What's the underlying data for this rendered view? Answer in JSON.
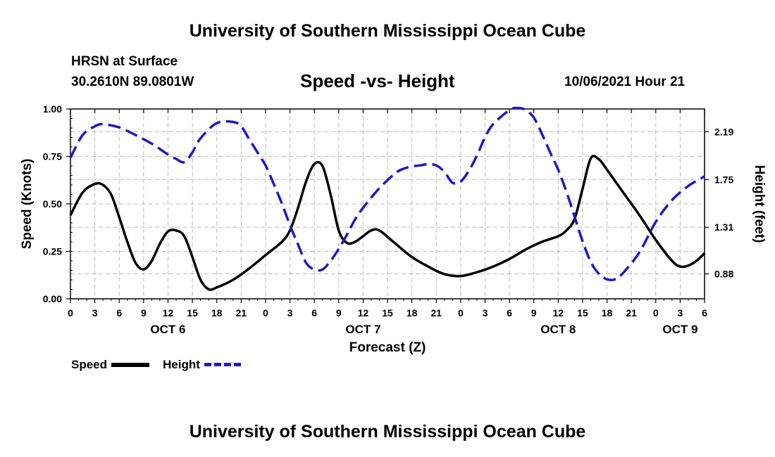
{
  "title_top": "University of Southern Mississippi Ocean Cube",
  "title_bottom": "University of Southern Mississippi Ocean Cube",
  "station": {
    "name": "HRSN at Surface",
    "location": "30.2610N  89.0801W"
  },
  "subtitle": "Speed -vs- Height",
  "datetime": "10/06/2021 Hour 21",
  "colors": {
    "speed": "#000000",
    "height": "#1a1acc",
    "grid": "#bbbbbb"
  },
  "legend": {
    "speed_label": "Speed",
    "height_label": "Height"
  },
  "chart_data": {
    "type": "line",
    "title": "Speed -vs- Height",
    "xlabel": "Forecast (Z)",
    "ylabel": "Speed (Knots)",
    "y2label": "Height (feet)",
    "x_unit": "hours since Oct 6 00Z",
    "xlim": [
      0,
      78
    ],
    "ylim": [
      0,
      1.0
    ],
    "y2lim": [
      0.65,
      2.4
    ],
    "grid": true,
    "x_ticks": [
      {
        "x": 0,
        "label": "0"
      },
      {
        "x": 3,
        "label": "3"
      },
      {
        "x": 6,
        "label": "6"
      },
      {
        "x": 9,
        "label": "9"
      },
      {
        "x": 12,
        "label": "12"
      },
      {
        "x": 15,
        "label": "15"
      },
      {
        "x": 18,
        "label": "18"
      },
      {
        "x": 21,
        "label": "21"
      },
      {
        "x": 24,
        "label": "0"
      },
      {
        "x": 27,
        "label": "3"
      },
      {
        "x": 30,
        "label": "6"
      },
      {
        "x": 33,
        "label": "9"
      },
      {
        "x": 36,
        "label": "12"
      },
      {
        "x": 39,
        "label": "15"
      },
      {
        "x": 42,
        "label": "18"
      },
      {
        "x": 45,
        "label": "21"
      },
      {
        "x": 48,
        "label": "0"
      },
      {
        "x": 51,
        "label": "3"
      },
      {
        "x": 54,
        "label": "6"
      },
      {
        "x": 57,
        "label": "9"
      },
      {
        "x": 60,
        "label": "12"
      },
      {
        "x": 63,
        "label": "15"
      },
      {
        "x": 66,
        "label": "18"
      },
      {
        "x": 69,
        "label": "21"
      },
      {
        "x": 72,
        "label": "0"
      },
      {
        "x": 75,
        "label": "3"
      },
      {
        "x": 78,
        "label": "6"
      }
    ],
    "day_labels": [
      {
        "x": 12,
        "label": "OCT 6"
      },
      {
        "x": 36,
        "label": "OCT 7"
      },
      {
        "x": 60,
        "label": "OCT 8"
      },
      {
        "x": 75,
        "label": "OCT 9"
      }
    ],
    "y_ticks": [
      {
        "y": 0.0,
        "label": "0.00"
      },
      {
        "y": 0.25,
        "label": "0.25"
      },
      {
        "y": 0.5,
        "label": "0.50"
      },
      {
        "y": 0.75,
        "label": "0.75"
      },
      {
        "y": 1.0,
        "label": "1.00"
      }
    ],
    "y2_ticks": [
      {
        "y": 0.88,
        "label": "0.88"
      },
      {
        "y": 1.31,
        "label": "1.31"
      },
      {
        "y": 1.75,
        "label": "1.75"
      },
      {
        "y": 2.19,
        "label": "2.19"
      }
    ],
    "series": [
      {
        "name": "Speed",
        "axis": "left",
        "style": "solid",
        "x": [
          0,
          1.5,
          3,
          4,
          5,
          6,
          7,
          8,
          9,
          10,
          11,
          12,
          13,
          14,
          15,
          16,
          17,
          18,
          20,
          22,
          24,
          26,
          27,
          28,
          29,
          30,
          31,
          32,
          33,
          34,
          35,
          36,
          37,
          38,
          40,
          42,
          44,
          46,
          48,
          50,
          52,
          54,
          56,
          58,
          60,
          61,
          62,
          63,
          64,
          65,
          66,
          67,
          68,
          70,
          72,
          74,
          75,
          76,
          77,
          78
        ],
        "y": [
          0.44,
          0.56,
          0.605,
          0.6,
          0.55,
          0.43,
          0.3,
          0.19,
          0.155,
          0.2,
          0.29,
          0.355,
          0.36,
          0.33,
          0.22,
          0.1,
          0.05,
          0.06,
          0.1,
          0.16,
          0.23,
          0.3,
          0.36,
          0.48,
          0.62,
          0.71,
          0.7,
          0.55,
          0.36,
          0.295,
          0.3,
          0.33,
          0.36,
          0.36,
          0.29,
          0.22,
          0.17,
          0.13,
          0.12,
          0.14,
          0.17,
          0.21,
          0.26,
          0.3,
          0.33,
          0.36,
          0.42,
          0.58,
          0.74,
          0.735,
          0.68,
          0.62,
          0.56,
          0.44,
          0.31,
          0.2,
          0.17,
          0.175,
          0.2,
          0.24
        ]
      },
      {
        "name": "Height",
        "axis": "right",
        "style": "dashed",
        "x": [
          0,
          1.5,
          3,
          4,
          6,
          8,
          10,
          12,
          13,
          14,
          15,
          16,
          18,
          20,
          21,
          22,
          23,
          24,
          25,
          26,
          27,
          28,
          29,
          30,
          31,
          32,
          33,
          34,
          35,
          36,
          38,
          40,
          41,
          42,
          43,
          44,
          45,
          46,
          47,
          48,
          49,
          50,
          51,
          52,
          54,
          55,
          56,
          57,
          58,
          59,
          60,
          61,
          62,
          63,
          64,
          65,
          66,
          67,
          68,
          70,
          72,
          74,
          76,
          78
        ],
        "y": [
          1.95,
          2.16,
          2.24,
          2.26,
          2.23,
          2.16,
          2.08,
          1.98,
          1.94,
          1.91,
          2.0,
          2.13,
          2.27,
          2.28,
          2.24,
          2.12,
          2.0,
          1.88,
          1.71,
          1.53,
          1.33,
          1.15,
          0.98,
          0.92,
          0.92,
          1.0,
          1.11,
          1.24,
          1.38,
          1.49,
          1.67,
          1.81,
          1.85,
          1.87,
          1.88,
          1.89,
          1.88,
          1.82,
          1.72,
          1.73,
          1.83,
          1.97,
          2.14,
          2.26,
          2.39,
          2.41,
          2.39,
          2.32,
          2.17,
          2.0,
          1.84,
          1.64,
          1.41,
          1.18,
          0.99,
          0.88,
          0.83,
          0.83,
          0.89,
          1.08,
          1.36,
          1.56,
          1.69,
          1.78
        ]
      }
    ]
  }
}
